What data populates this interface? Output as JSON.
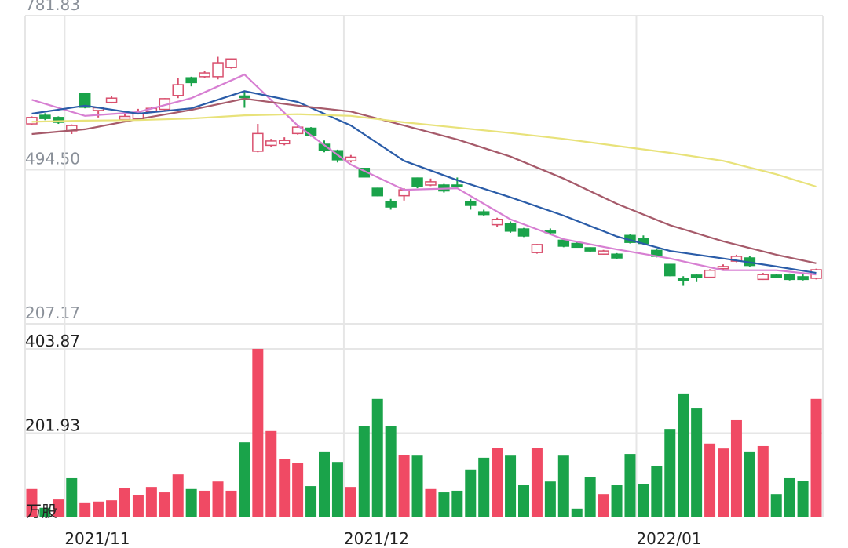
{
  "chart_data": [
    {
      "type": "candlestick",
      "categories": [
        null,
        null,
        "2021/11",
        null,
        null,
        null,
        null,
        null,
        null,
        null,
        null,
        null,
        null,
        null,
        null,
        null,
        null,
        null,
        null,
        null,
        null,
        null,
        null,
        "2021/12",
        null,
        null,
        null,
        null,
        null,
        null,
        null,
        null,
        null,
        null,
        null,
        null,
        null,
        null,
        null,
        null,
        null,
        null,
        null,
        null,
        null,
        "2022/01",
        null,
        null,
        null,
        null,
        null,
        null,
        null,
        null,
        null,
        null,
        null,
        null,
        null,
        null
      ],
      "open": [
        580,
        596,
        592,
        567,
        636,
        605,
        620,
        588,
        590,
        603,
        607,
        633,
        666,
        668,
        668,
        685,
        632,
        529,
        540,
        543,
        562,
        572,
        542,
        530,
        511,
        497,
        460,
        435,
        446,
        479,
        466,
        466,
        466,
        435,
        416,
        392,
        394,
        384,
        340,
        380,
        363,
        357,
        349,
        337,
        337,
        372,
        366,
        344,
        318,
        292,
        298,
        294,
        310,
        324,
        330,
        290,
        298,
        299,
        295,
        292
      ],
      "close": [
        592,
        590,
        583,
        577,
        611,
        610,
        628,
        594,
        600,
        609,
        627,
        653,
        657,
        675,
        694,
        701,
        629,
        562,
        548,
        549,
        574,
        558,
        530,
        513,
        518,
        481,
        446,
        425,
        457,
        463,
        472,
        455,
        463,
        428,
        411,
        402,
        380,
        371,
        355,
        377,
        352,
        350,
        343,
        343,
        330,
        359,
        357,
        333,
        297,
        288,
        294,
        307,
        314,
        333,
        316,
        299,
        294,
        290,
        290,
        308
      ],
      "high": [
        594,
        600,
        594,
        579,
        638,
        612,
        632,
        600,
        608,
        612,
        628,
        665,
        668,
        679,
        705,
        702,
        640,
        580,
        552,
        555,
        576,
        574,
        549,
        532,
        522,
        498,
        461,
        440,
        460,
        480,
        478,
        468,
        480,
        440,
        420,
        405,
        398,
        386,
        356,
        385,
        365,
        360,
        350,
        345,
        339,
        374,
        372,
        346,
        319,
        296,
        300,
        309,
        318,
        336,
        333,
        302,
        300,
        301,
        301,
        310
      ],
      "low": [
        578,
        587,
        580,
        561,
        609,
        592,
        618,
        585,
        588,
        600,
        605,
        628,
        650,
        665,
        663,
        683,
        610,
        527,
        537,
        540,
        560,
        556,
        527,
        508,
        508,
        480,
        445,
        420,
        437,
        460,
        464,
        452,
        460,
        420,
        408,
        388,
        377,
        369,
        338,
        373,
        350,
        349,
        341,
        336,
        328,
        357,
        355,
        331,
        296,
        278,
        285,
        293,
        306,
        322,
        314,
        289,
        292,
        288,
        288,
        290
      ],
      "up_color": "#d9506e",
      "down_color": "#1aa34a",
      "ylim": [
        207.17,
        781.83
      ],
      "yticks": [
        781.83,
        {
          "value": 494.5,
          "label": "494.50"
        },
        207.17
      ],
      "grid": true,
      "overlays": [
        {
          "color": "#d77fd2",
          "x": [
            0,
            4,
            8,
            12,
            16,
            20,
            24,
            28,
            32,
            36,
            40,
            44,
            48,
            52,
            56,
            59
          ],
          "values": [
            625,
            595,
            602,
            628,
            672,
            577,
            504,
            457,
            460,
            402,
            365,
            346,
            329,
            307,
            307,
            299
          ]
        },
        {
          "color": "#2a5ca8",
          "x": [
            0,
            4,
            8,
            12,
            16,
            20,
            24,
            28,
            32,
            36,
            40,
            44,
            48,
            52,
            56,
            59
          ],
          "values": [
            599,
            614,
            599,
            609,
            641,
            621,
            577,
            511,
            475,
            443,
            409,
            370,
            343,
            329,
            314,
            302
          ]
        },
        {
          "color": "#a65a6a",
          "x": [
            0,
            4,
            8,
            12,
            16,
            20,
            24,
            28,
            32,
            36,
            40,
            44,
            48,
            52,
            56,
            59
          ],
          "values": [
            561,
            570,
            589,
            606,
            627,
            614,
            603,
            577,
            551,
            519,
            478,
            431,
            391,
            361,
            336,
            320
          ]
        },
        {
          "color": "#e8e27a",
          "x": [
            0,
            4,
            8,
            12,
            16,
            20,
            24,
            28,
            32,
            36,
            40,
            44,
            48,
            52,
            56,
            59
          ],
          "values": [
            584,
            586,
            587,
            590,
            596,
            598,
            595,
            583,
            573,
            563,
            552,
            539,
            526,
            511,
            486,
            463
          ]
        }
      ]
    },
    {
      "type": "bar",
      "unit_label": "万股",
      "values": [
        68,
        23,
        43,
        94,
        36,
        38,
        41,
        71,
        54,
        73,
        60,
        103,
        68,
        64,
        86,
        64,
        180,
        404,
        207,
        139,
        131,
        75,
        158,
        133,
        73,
        218,
        284,
        218,
        150,
        148,
        68,
        60,
        64,
        115,
        143,
        167,
        148,
        77,
        167,
        86,
        148,
        21,
        96,
        56,
        77,
        152,
        79,
        124,
        212,
        297,
        261,
        177,
        165,
        233,
        158,
        171,
        56,
        94,
        88,
        284
      ],
      "colors": [
        "#f04a64",
        "#1aa34a",
        "#f04a64",
        "#1aa34a",
        "#f04a64",
        "#f04a64",
        "#f04a64",
        "#f04a64",
        "#f04a64",
        "#f04a64",
        "#f04a64",
        "#f04a64",
        "#1aa34a",
        "#f04a64",
        "#f04a64",
        "#f04a64",
        "#1aa34a",
        "#f04a64",
        "#f04a64",
        "#f04a64",
        "#f04a64",
        "#1aa34a",
        "#1aa34a",
        "#1aa34a",
        "#f04a64",
        "#1aa34a",
        "#1aa34a",
        "#1aa34a",
        "#f04a64",
        "#1aa34a",
        "#f04a64",
        "#1aa34a",
        "#1aa34a",
        "#1aa34a",
        "#1aa34a",
        "#f04a64",
        "#1aa34a",
        "#1aa34a",
        "#f04a64",
        "#1aa34a",
        "#1aa34a",
        "#1aa34a",
        "#1aa34a",
        "#f04a64",
        "#1aa34a",
        "#1aa34a",
        "#1aa34a",
        "#1aa34a",
        "#1aa34a",
        "#1aa34a",
        "#1aa34a",
        "#f04a64",
        "#f04a64",
        "#f04a64",
        "#1aa34a",
        "#f04a64",
        "#1aa34a",
        "#1aa34a",
        "#1aa34a",
        "#f04a64"
      ],
      "ylim": [
        0,
        403.87
      ],
      "yticks": [
        403.87,
        201.93
      ],
      "grid": true
    }
  ]
}
